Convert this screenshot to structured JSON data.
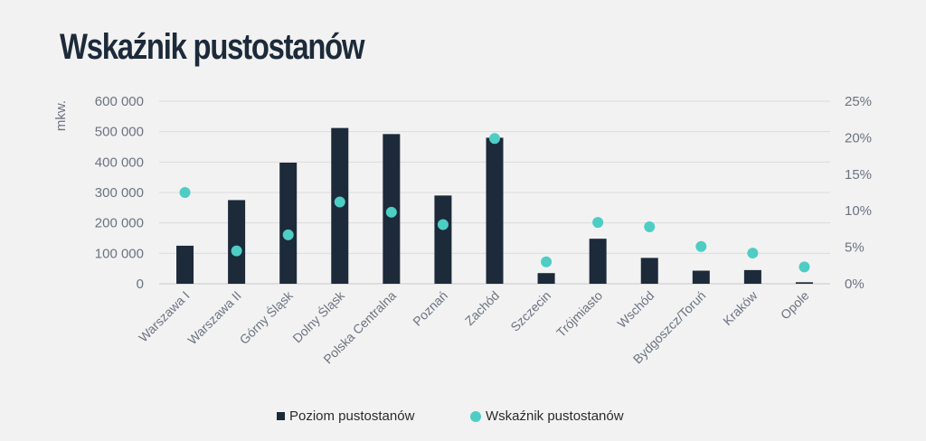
{
  "title": "Wskaźnik pustostanów",
  "chart_data": {
    "type": "bar",
    "title": "Wskaźnik pustostanów",
    "ylabel": "mkw.",
    "categories": [
      "Warszawa I",
      "Warszawa II",
      "Górny Śląsk",
      "Dolny Śląsk",
      "Polska Centralna",
      "Poznań",
      "Zachód",
      "Szczecin",
      "Trójmiasto",
      "Wschód",
      "Bydgoszcz/Toruń",
      "Kraków",
      "Opole"
    ],
    "series": [
      {
        "name": "Poziom pustostanów",
        "type": "bar",
        "axis": "left",
        "color": "#1c2a3a",
        "values": [
          125000,
          275000,
          398000,
          512000,
          492000,
          290000,
          480000,
          35000,
          148000,
          85000,
          43000,
          45000,
          5000
        ]
      },
      {
        "name": "Wskaźnik pustostanów",
        "type": "scatter",
        "axis": "right",
        "color": "#4ecdc4",
        "values": [
          12.5,
          4.5,
          6.7,
          11.2,
          9.8,
          8.1,
          19.9,
          3.0,
          8.4,
          7.8,
          5.1,
          4.2,
          2.3
        ]
      }
    ],
    "left_axis": {
      "min": 0,
      "max": 600000,
      "ticks": [
        "0",
        "100 000",
        "200 000",
        "300 000",
        "400 000",
        "500 000",
        "600 000"
      ]
    },
    "right_axis": {
      "min": 0,
      "max": 25,
      "ticks": [
        "0%",
        "5%",
        "10%",
        "15%",
        "20%",
        "25%"
      ]
    },
    "grid": true,
    "legend": "bottom"
  }
}
